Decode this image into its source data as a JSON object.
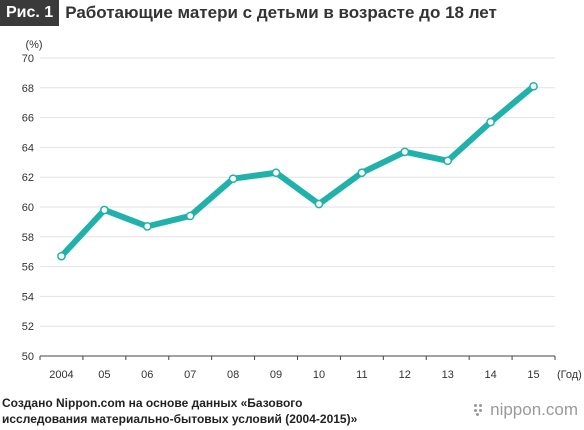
{
  "header": {
    "badge": "Рис. 1",
    "title": "Работающие матери с детьми в возрасте до 18 лет"
  },
  "chart_data": {
    "type": "line",
    "title": "Работающие матери с детьми в возрасте до 18 лет",
    "ylabel": "(%)",
    "xlabel": "(Год)",
    "ylim": [
      50,
      70
    ],
    "yticks": [
      "50",
      "52",
      "54",
      "56",
      "58",
      "60",
      "62",
      "64",
      "66",
      "68",
      "70"
    ],
    "categories": [
      "2004",
      "05",
      "06",
      "07",
      "08",
      "09",
      "10",
      "11",
      "12",
      "13",
      "14",
      "15"
    ],
    "series": [
      {
        "values": [
          56.7,
          59.8,
          58.7,
          59.4,
          61.9,
          62.3,
          60.2,
          62.3,
          63.7,
          63.1,
          65.7,
          68.1
        ]
      }
    ],
    "grid": true,
    "line_color": "#20b2aa"
  },
  "footer": {
    "source": "Создано Nippon.com на основе данных «Базового исследования материально-бытовых условий (2004-2015)»",
    "logo": "nippon.com"
  }
}
